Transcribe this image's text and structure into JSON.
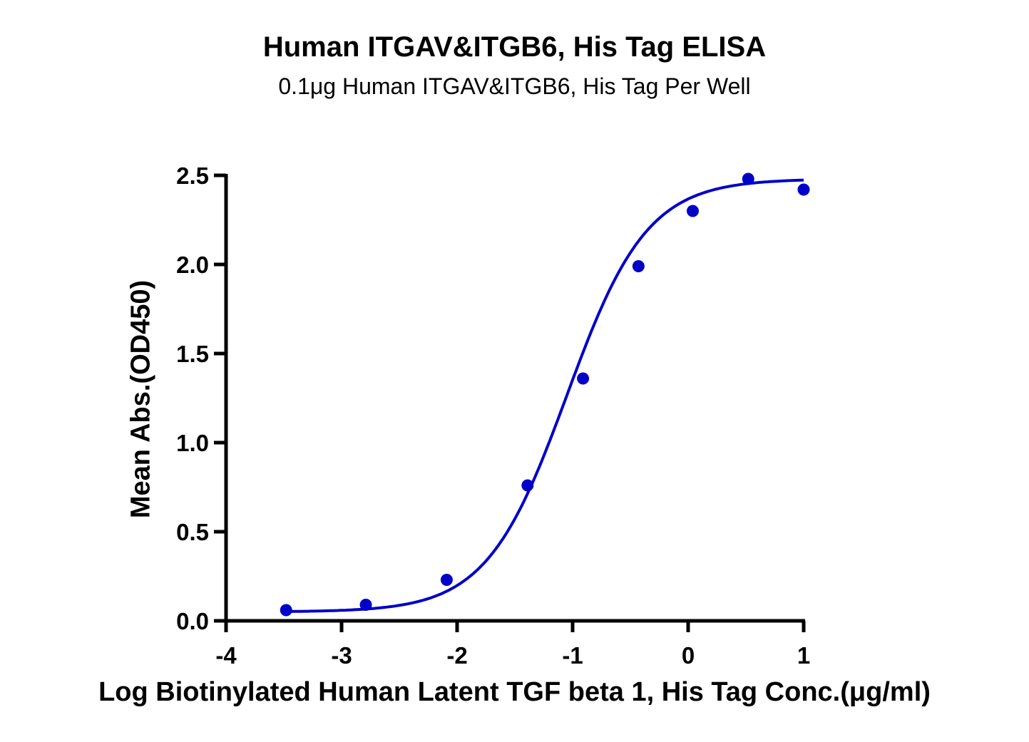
{
  "chart_data": {
    "type": "scatter",
    "title": "Human ITGAV&ITGB6, His Tag ELISA",
    "subtitle": "0.1μg Human ITGAV&ITGB6, His Tag Per Well",
    "xlabel": "Log Biotinylated Human Latent TGF beta 1, His Tag Conc.(μg/ml)",
    "ylabel": "Mean Abs.(OD450)",
    "xlim": [
      -4,
      1
    ],
    "ylim": [
      0,
      2.5
    ],
    "x_ticks": [
      "-4",
      "-3",
      "-2",
      "-1",
      "0",
      "1"
    ],
    "y_ticks": [
      "0.0",
      "0.5",
      "1.0",
      "1.5",
      "2.0",
      "2.5"
    ],
    "grid": false,
    "legend": null,
    "series": [
      {
        "name": "Mean Abs.(OD450)",
        "color": "#0000C8",
        "marker": "circle",
        "fit": "4-parameter logistic curve",
        "x": [
          -3.48,
          -2.79,
          -2.09,
          -1.39,
          -0.91,
          -0.43,
          0.04,
          0.52,
          1.0
        ],
        "y": [
          0.06,
          0.09,
          0.23,
          0.76,
          1.36,
          1.99,
          2.3,
          2.48,
          2.42
        ]
      }
    ]
  },
  "colors": {
    "series": "#0000C8",
    "axis": "#000000",
    "background": "#FFFFFF"
  }
}
